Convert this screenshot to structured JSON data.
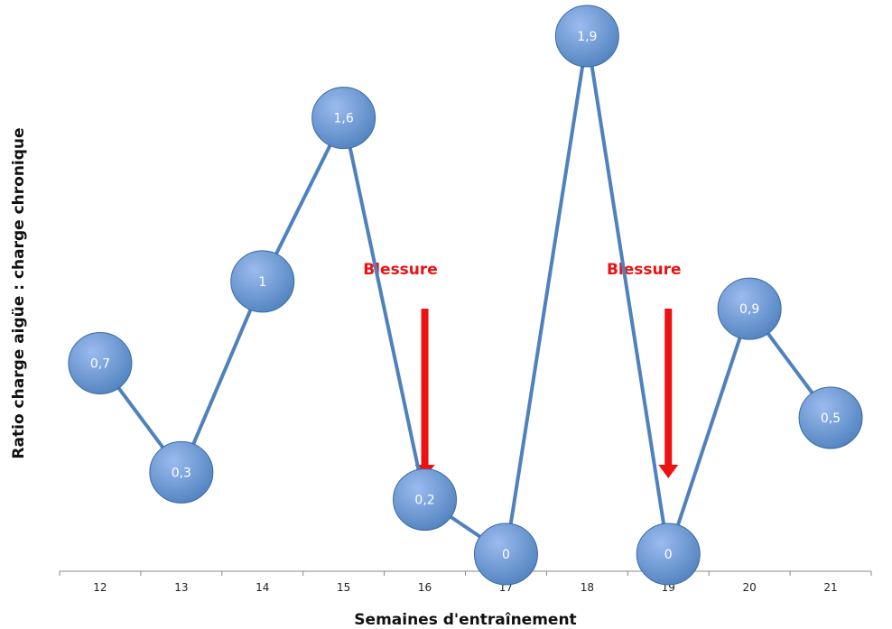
{
  "chart_data": {
    "type": "line",
    "x": [
      "12",
      "13",
      "14",
      "15",
      "16",
      "17",
      "18",
      "19",
      "20",
      "21"
    ],
    "values": [
      0.7,
      0.3,
      1,
      1.6,
      0.2,
      0,
      1.9,
      0,
      0.9,
      0.5
    ],
    "data_labels": [
      "0,7",
      "0,3",
      "1",
      "1,6",
      "0,2",
      "0",
      "1,9",
      "0",
      "0,9",
      "0,5"
    ],
    "title": "",
    "xlabel": "Semaines d'entraînement",
    "ylabel": "Ratio charge aigüe : charge chronique",
    "ylim": [
      0,
      1.9
    ],
    "grid": false,
    "legend": false,
    "annotations": [
      {
        "text": "Blessure",
        "x": "16",
        "marker": "arrow-down"
      },
      {
        "text": "Blessure",
        "x": "19",
        "marker": "arrow-down"
      }
    ],
    "colors": {
      "line": "#4f81bd",
      "marker_fill": "#4f81bd",
      "marker_highlight": "#9bbbef",
      "marker_edge": "#3a6aa8",
      "label": "#ffffff",
      "annotation": "#ee1111",
      "axis": "#888888"
    }
  }
}
